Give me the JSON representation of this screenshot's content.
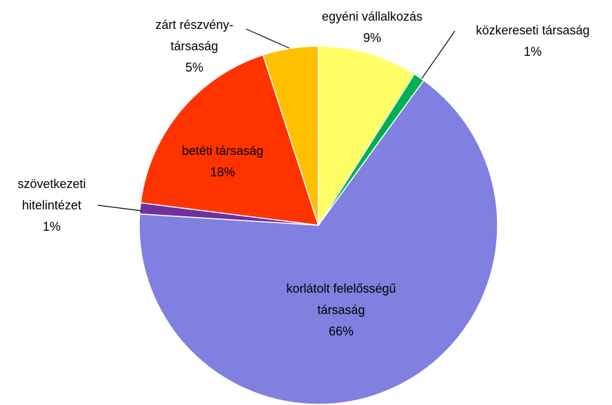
{
  "chart_data": {
    "type": "pie",
    "categories": [
      "egyéni vállalkozás",
      "közkereseti társaság",
      "korlátolt felelősségű\ntársaság",
      "szövetkezeti\nhitelintézet",
      "betéti társaság",
      "zárt részvény-\ntársaság"
    ],
    "values": [
      9,
      1,
      66,
      1,
      18,
      5
    ],
    "value_labels": [
      "9%",
      "1%",
      "66%",
      "1%",
      "18%",
      "5%"
    ],
    "colors": [
      "#FFFF66",
      "#00B050",
      "#8080E0",
      "#7030A0",
      "#FF3300",
      "#FFC000"
    ]
  }
}
